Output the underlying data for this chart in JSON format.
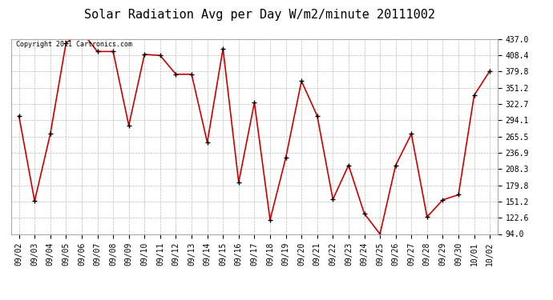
{
  "title": "Solar Radiation Avg per Day W/m2/minute 20111002",
  "copyright": "Copyright 2011 Cartronics.com",
  "x_labels": [
    "09/02",
    "09/03",
    "09/04",
    "09/05",
    "09/06",
    "09/07",
    "09/08",
    "09/09",
    "09/10",
    "09/11",
    "09/12",
    "09/13",
    "09/14",
    "09/15",
    "09/16",
    "09/17",
    "09/18",
    "09/19",
    "09/20",
    "09/21",
    "09/22",
    "09/23",
    "09/24",
    "09/25",
    "09/26",
    "09/27",
    "09/28",
    "09/29",
    "09/30",
    "10/01",
    "10/02"
  ],
  "y_values": [
    302,
    152,
    270,
    430,
    450,
    415,
    415,
    285,
    410,
    408,
    375,
    375,
    255,
    420,
    185,
    325,
    119,
    228,
    363,
    302,
    155,
    215,
    130,
    94,
    215,
    270,
    124,
    154,
    163,
    338,
    381
  ],
  "y_ticks": [
    94.0,
    122.6,
    151.2,
    179.8,
    208.3,
    236.9,
    265.5,
    294.1,
    322.7,
    351.2,
    379.8,
    408.4,
    437.0
  ],
  "line_color": "#cc0000",
  "marker_color": "#000000",
  "bg_color": "#ffffff",
  "grid_color": "#bbbbbb",
  "title_fontsize": 11,
  "copyright_fontsize": 6,
  "tick_fontsize": 7,
  "figwidth": 6.9,
  "figheight": 3.75,
  "dpi": 100
}
